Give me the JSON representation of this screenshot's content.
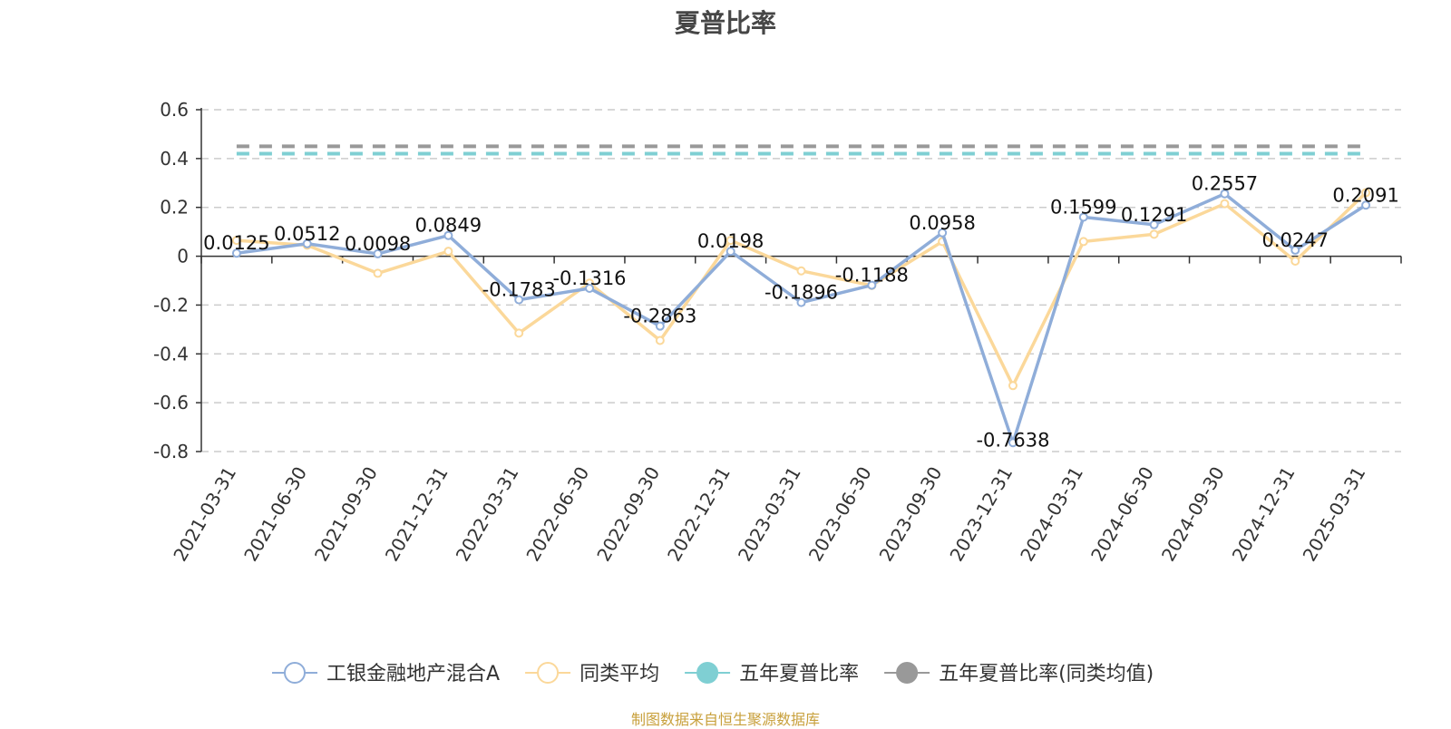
{
  "chart_data": {
    "type": "line",
    "title": "夏普比率",
    "categories": [
      "2021-03-31",
      "2021-06-30",
      "2021-09-30",
      "2021-12-31",
      "2022-03-31",
      "2022-06-30",
      "2022-09-30",
      "2022-12-31",
      "2023-03-31",
      "2023-06-30",
      "2023-09-30",
      "2023-12-31",
      "2024-03-31",
      "2024-06-30",
      "2024-09-30",
      "2024-12-31",
      "2025-03-31"
    ],
    "series": [
      {
        "name": "工银金融地产混合A",
        "color": "#8fadd9",
        "marker": "hollow-circle",
        "show_labels": true,
        "values": [
          0.0125,
          0.0512,
          0.0098,
          0.0849,
          -0.1783,
          -0.1316,
          -0.2863,
          0.0198,
          -0.1896,
          -0.1188,
          0.0958,
          -0.7638,
          0.1599,
          0.1291,
          0.2557,
          0.0247,
          0.2091
        ]
      },
      {
        "name": "同类平均",
        "color": "#fbd89a",
        "marker": "hollow-circle",
        "show_labels": false,
        "values": [
          0.065,
          0.045,
          -0.07,
          0.02,
          -0.315,
          -0.11,
          -0.345,
          0.065,
          -0.06,
          -0.12,
          0.06,
          -0.53,
          0.06,
          0.09,
          0.215,
          -0.02,
          0.26
        ]
      },
      {
        "name": "五年夏普比率",
        "color": "#7fcfd3",
        "marker": "filled-circle",
        "style": "dashed",
        "value": 0.42
      },
      {
        "name": "五年夏普比率(同类均值)",
        "color": "#999999",
        "marker": "filled-circle",
        "style": "dashed",
        "value": 0.45
      }
    ],
    "y_ticks": [
      "0.6",
      "0.4",
      "0.2",
      "0",
      "-0.2",
      "-0.4",
      "-0.6",
      "-0.8"
    ],
    "ylim": [
      -0.8,
      0.6
    ],
    "grid": "horizontal-dashed",
    "legend": "bottom"
  },
  "footer": "制图数据来自恒生聚源数据库"
}
